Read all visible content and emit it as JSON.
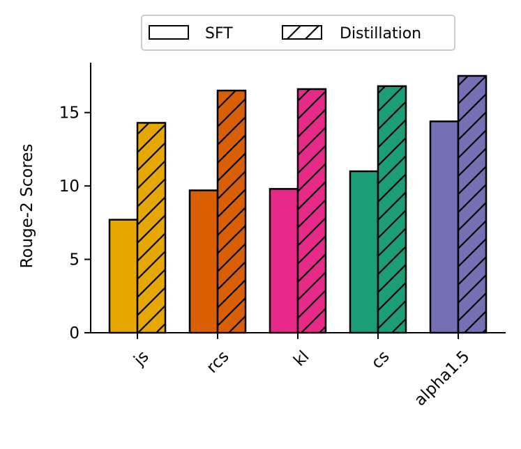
{
  "chart_data": {
    "type": "bar",
    "title": "",
    "xlabel": "",
    "ylabel": "Rouge-2 Scores",
    "categories": [
      "js",
      "rcs",
      "kl",
      "cs",
      "alpha1.5"
    ],
    "category_colors": [
      "#E6A800",
      "#D95F02",
      "#E7298A",
      "#1B9E77",
      "#7570B3"
    ],
    "series": [
      {
        "name": "SFT",
        "hatch": "none",
        "values": [
          7.7,
          9.7,
          9.8,
          11.0,
          14.4
        ]
      },
      {
        "name": "Distillation",
        "hatch": "diagonal",
        "values": [
          14.3,
          16.5,
          16.6,
          16.8,
          17.5
        ]
      }
    ],
    "yticks": [
      0,
      5,
      10,
      15
    ],
    "ylim": [
      0,
      18.4
    ],
    "grid": false,
    "legend_position": "top-center"
  }
}
